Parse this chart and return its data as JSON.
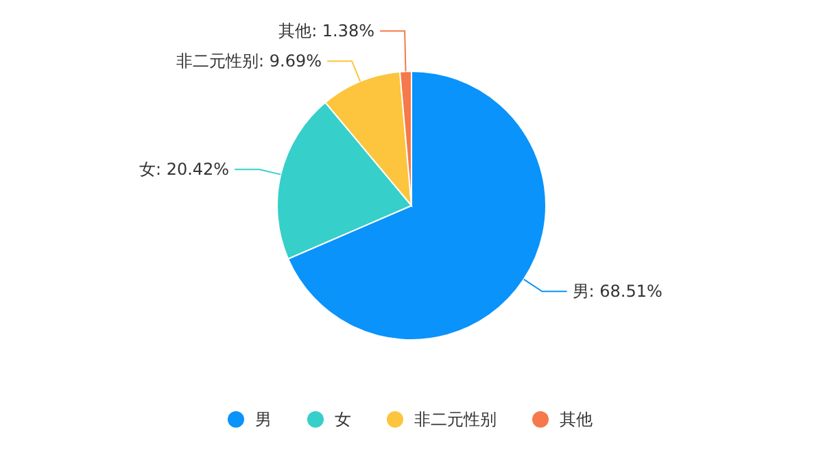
{
  "chart_data": {
    "type": "pie",
    "categories": [
      "男",
      "女",
      "非二元性别",
      "其他"
    ],
    "values": [
      68.51,
      20.42,
      9.69,
      1.38
    ],
    "colors": [
      "#0a93fa",
      "#36cfc9",
      "#fcc53d",
      "#f5794a"
    ],
    "value_labels": [
      "男: 68.51%",
      "女: 20.42%",
      "非二元性别: 9.69%",
      "其他: 1.38%"
    ],
    "legend": "bottom"
  }
}
